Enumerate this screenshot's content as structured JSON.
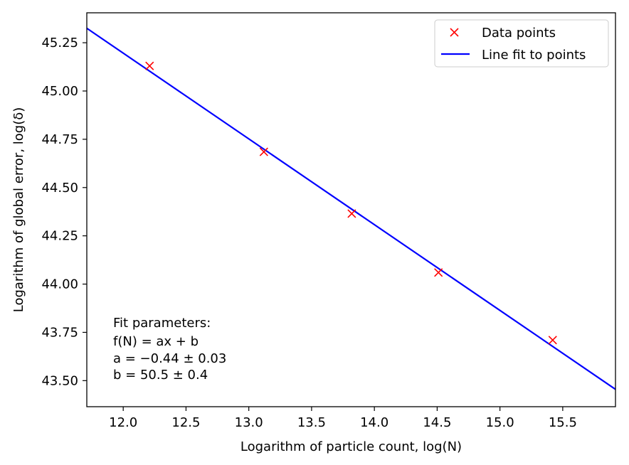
{
  "chart_data": {
    "type": "line",
    "title": "",
    "xlabel": "Logarithm of particle count, log(N)",
    "ylabel": "Logarithm of global error, log(δ)",
    "xlim": [
      11.71,
      15.92
    ],
    "ylim": [
      43.365,
      45.405
    ],
    "xticks": [
      12.0,
      12.5,
      13.0,
      13.5,
      14.0,
      14.5,
      15.0,
      15.5
    ],
    "xtick_labels": [
      "12.0",
      "12.5",
      "13.0",
      "13.5",
      "14.0",
      "14.5",
      "15.0",
      "15.5"
    ],
    "yticks": [
      43.5,
      43.75,
      44.0,
      44.25,
      44.5,
      44.75,
      45.0,
      45.25
    ],
    "ytick_labels": [
      "43.50",
      "43.75",
      "44.00",
      "44.25",
      "44.50",
      "44.75",
      "45.00",
      "45.25"
    ],
    "grid": false,
    "legend_position": "top-right",
    "series": [
      {
        "name": "Data points",
        "style": "markers",
        "marker": "x",
        "color": "#ff0000",
        "x": [
          12.21,
          13.12,
          13.82,
          14.51,
          15.42
        ],
        "y": [
          45.13,
          44.685,
          44.365,
          44.06,
          43.71
        ]
      },
      {
        "name": "Line fit to points",
        "style": "line",
        "color": "#0000ff",
        "x": [
          11.71,
          15.92
        ],
        "y": [
          45.325,
          43.455
        ]
      }
    ],
    "annotation": {
      "lines": [
        "Fit parameters:",
        "f(N) = ax + b",
        "a = −0.44 ± 0.03",
        "b = 50.5 ± 0.4"
      ]
    }
  }
}
